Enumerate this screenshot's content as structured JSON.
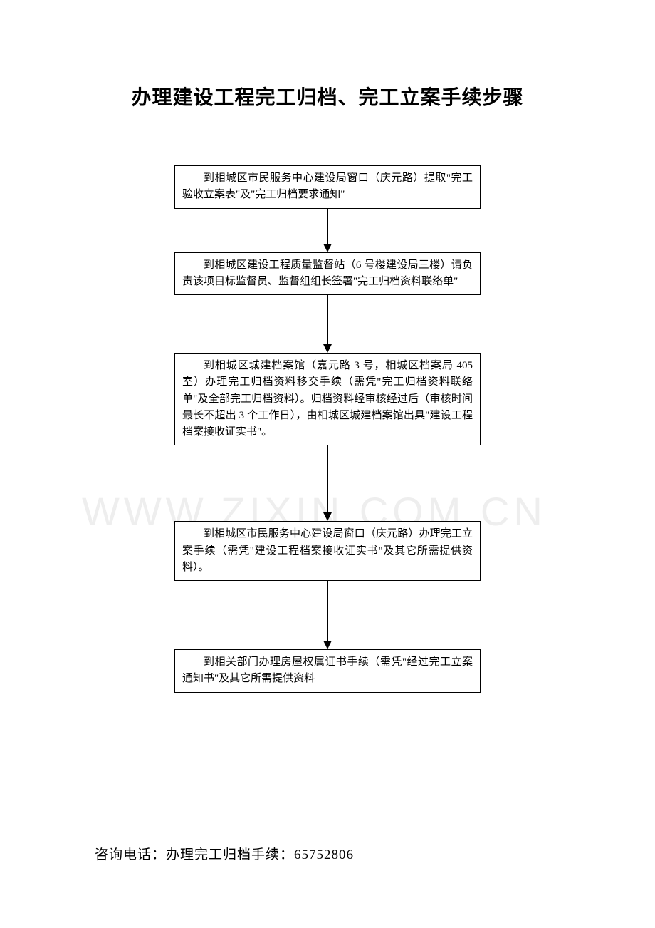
{
  "title": "办理建设工程完工归档、完工立案手续步骤",
  "steps": {
    "step1": "到相城区市民服务中心建设局窗口（庆元路）提取\"完工验收立案表\"及\"完工归档要求通知\"",
    "step2": "到相城区建设工程质量监督站（6 号楼建设局三楼）请负责该项目标监督员、监督组组长签署\"完工归档资料联络单\"",
    "step3": "到相城区城建档案馆（嘉元路 3 号，相城区档案局 405 室）办理完工归档资料移交手续（需凭\"完工归档资料联络单\"及全部完工归档资料）。归档资料经审核经过后（审核时间最长不超出 3 个工作日），由相城区城建档案馆出具\"建设工程档案接收证实书\"。",
    "step4": "到相城区市民服务中心建设局窗口（庆元路）办理完工立案手续（需凭\"建设工程档案接收证实书\"及其它所需提供资料）。",
    "step5": "到相关部门办理房屋权属证书手续（需凭\"经过完工立案通知书\"及其它所需提供资料"
  },
  "arrows": {
    "h1": 50,
    "h2": 70,
    "h3": 95,
    "h4": 85
  },
  "watermark": "WWW.ZIXIN.COM.CN",
  "footer": "咨询电话：办理完工归档手续：65752806",
  "colors": {
    "text": "#000000",
    "background": "#ffffff",
    "border": "#000000",
    "watermark": "#eeeeee"
  }
}
